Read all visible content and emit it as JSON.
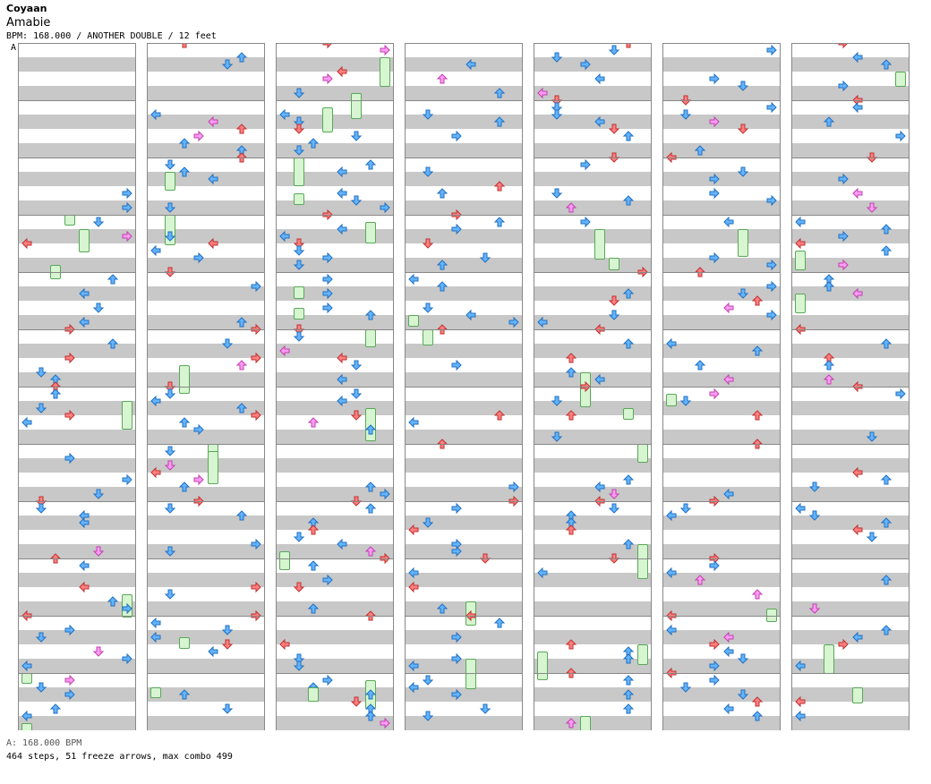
{
  "header": {
    "artist": "Coyaan",
    "title": "Amabie",
    "info": "BPM: 168.000 / ANOTHER DOUBLE / 12 feet",
    "marker": "A"
  },
  "footer": {
    "bpm_line": "A: 168.000 BPM",
    "stats_line": "464 steps, 51 freeze arrows, max combo 499"
  },
  "colors": {
    "quarter": "#ff8080",
    "eighth": "#64b4ff",
    "sixteenth": "#ff9cf4",
    "freeze": "#c8f5c0",
    "stripe": "#c8c8c8"
  },
  "chart_data": {
    "type": "table",
    "panel_count": 7,
    "lanes_per_panel": 8,
    "beats_per_panel": 48,
    "steps": 464,
    "freeze_arrows": 51,
    "max_combo": 499
  }
}
